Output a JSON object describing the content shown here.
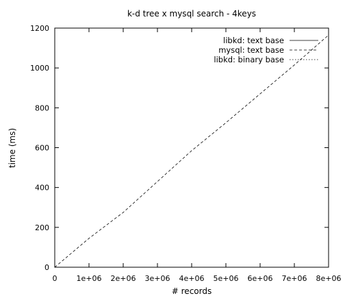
{
  "chart_data": {
    "type": "line",
    "title": "k-d tree x mysql search - 4keys",
    "xlabel": "# records",
    "ylabel": "time (ms)",
    "xlim": [
      0,
      8000000
    ],
    "ylim": [
      0,
      1200
    ],
    "x_ticks": [
      {
        "value": 0,
        "label": "0"
      },
      {
        "value": 1000000,
        "label": "1e+06"
      },
      {
        "value": 2000000,
        "label": "2e+06"
      },
      {
        "value": 3000000,
        "label": "3e+06"
      },
      {
        "value": 4000000,
        "label": "4e+06"
      },
      {
        "value": 5000000,
        "label": "5e+06"
      },
      {
        "value": 6000000,
        "label": "6e+06"
      },
      {
        "value": 7000000,
        "label": "7e+06"
      },
      {
        "value": 8000000,
        "label": "8e+06"
      }
    ],
    "y_ticks": [
      {
        "value": 0,
        "label": "0"
      },
      {
        "value": 200,
        "label": "200"
      },
      {
        "value": 400,
        "label": "400"
      },
      {
        "value": 600,
        "label": "600"
      },
      {
        "value": 800,
        "label": "800"
      },
      {
        "value": 1000,
        "label": "1000"
      },
      {
        "value": 1200,
        "label": "1200"
      }
    ],
    "grid": false,
    "legend_position": "top-right",
    "series": [
      {
        "name": "libkd: text base",
        "style": "solid",
        "x": [
          0,
          1000000,
          2000000,
          3000000,
          4000000,
          5000000,
          6000000,
          7000000,
          8000000
        ],
        "values": [
          0,
          0,
          0,
          0,
          0,
          0,
          0,
          0,
          0
        ]
      },
      {
        "name": "mysql: text base",
        "style": "dashed",
        "x": [
          0,
          1000000,
          2000000,
          3000000,
          4000000,
          5000000,
          6000000,
          7000000,
          8000000
        ],
        "values": [
          0,
          145,
          275,
          430,
          585,
          725,
          870,
          1015,
          1165
        ]
      },
      {
        "name": "libkd: binary base",
        "style": "dotted",
        "x": [
          0,
          1000000,
          2000000,
          3000000,
          4000000,
          5000000,
          6000000,
          7000000,
          8000000
        ],
        "values": [
          0,
          0,
          0,
          0,
          0,
          0,
          0,
          0,
          0
        ]
      }
    ]
  }
}
